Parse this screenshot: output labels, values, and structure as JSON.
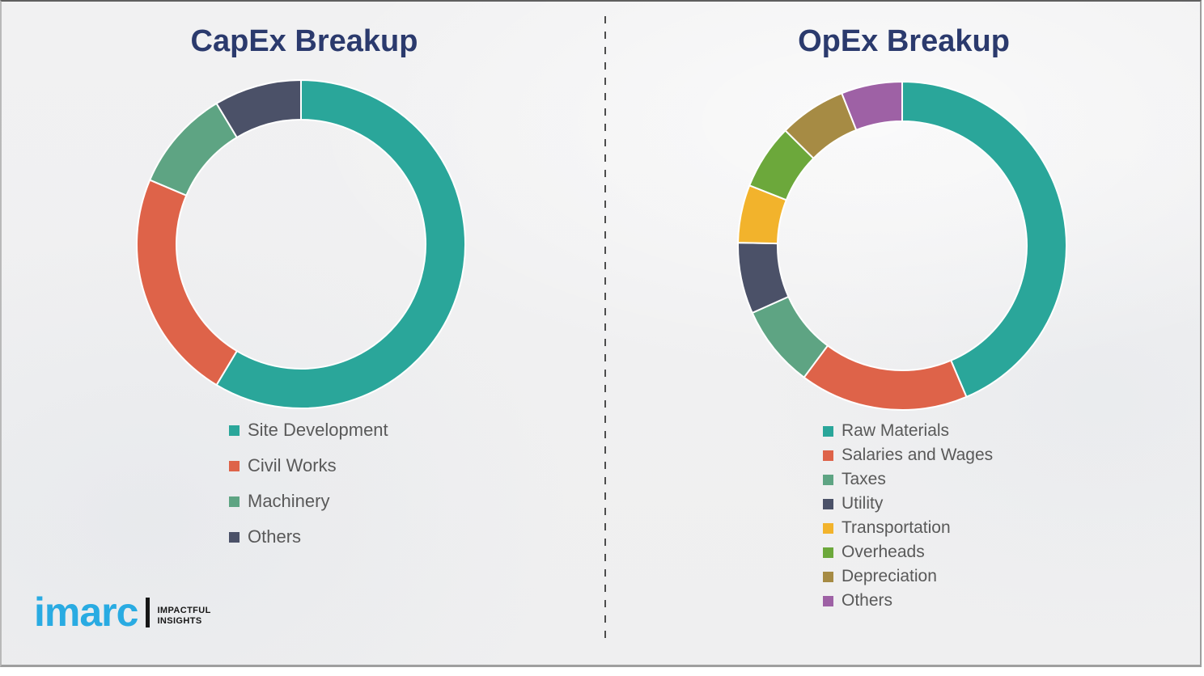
{
  "titles": {
    "left": "CapEx Breakup",
    "right": "OpEx Breakup"
  },
  "chart_data": [
    {
      "type": "pie",
      "variant": "donut",
      "title": "CapEx Breakup",
      "labels": [
        "Site Development",
        "Civil Works",
        "Machinery",
        "Others"
      ],
      "values": [
        58.6,
        22.8,
        10.0,
        8.6
      ],
      "colors": [
        "#2AA69A",
        "#DE6349",
        "#5EA483",
        "#4B5168"
      ],
      "start_angle_deg": 0,
      "direction": "clockwise",
      "units": "percent",
      "legend_position": "below-left",
      "data_labels_shown": false
    },
    {
      "type": "pie",
      "variant": "donut",
      "title": "OpEx Breakup",
      "labels": [
        "Raw Materials",
        "Salaries and Wages",
        "Taxes",
        "Utility",
        "Transportation",
        "Overheads",
        "Depreciation",
        "Others"
      ],
      "values": [
        43.6,
        16.6,
        8.1,
        7.0,
        5.7,
        6.4,
        6.6,
        6.0
      ],
      "colors": [
        "#2AA69A",
        "#DE6349",
        "#5EA483",
        "#4B5168",
        "#F2B32C",
        "#6CA83B",
        "#A68B44",
        "#9E61A5"
      ],
      "start_angle_deg": 0,
      "direction": "clockwise",
      "units": "percent",
      "legend_position": "below-left",
      "data_labels_shown": false
    }
  ],
  "logo": {
    "brand": "imarc",
    "tagline_line1": "IMPACTFUL",
    "tagline_line2": "INSIGHTS",
    "brand_color": "#29ABE2"
  },
  "styles": {
    "title_color": "#2B3A6D",
    "legend_text_color": "#595959",
    "divider_color": "#4D4D4D",
    "slide_background": "#F0F0F1",
    "segment_gap_color": "#FFFFFF"
  }
}
